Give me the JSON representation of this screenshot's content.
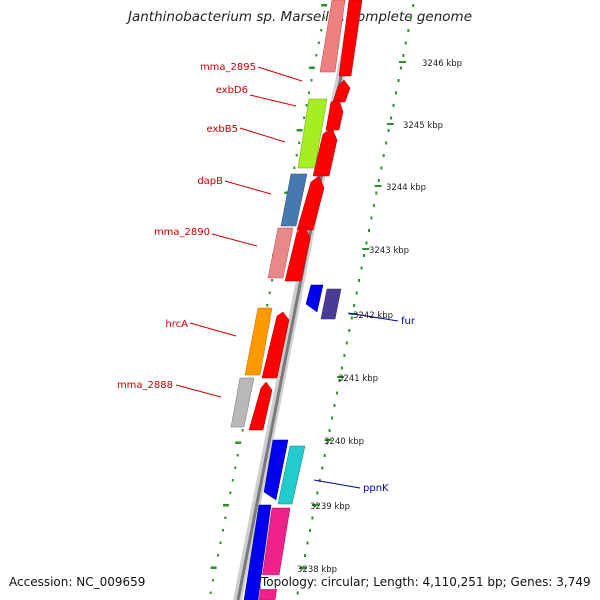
{
  "title": "Janthinobacterium sp. Marseille, complete genome",
  "footer": {
    "accession": "Accession: NC_009659",
    "summary": "Topology: circular; Length: 4,110,251 bp; Genes: 3,749"
  },
  "gene_labels": [
    "mma_2895",
    "exbD6",
    "exbB5",
    "dapB",
    "mma_2890",
    "hrcA",
    "mma_2888",
    "fur",
    "ppnK"
  ],
  "kbp_ticks": [
    "3246 kbp",
    "3245 kbp",
    "3244 kbp",
    "3243 kbp",
    "3242 kbp",
    "3241 kbp",
    "3240 kbp",
    "3239 kbp",
    "3238 kbp"
  ],
  "colors": {
    "forward_cds": "#ff0000",
    "reverse_cds": "#0000ee",
    "backbone": "#999999",
    "tick_marks": "#2f8f2f",
    "label_red": "#cc0000",
    "label_blue": "#0000aa"
  }
}
